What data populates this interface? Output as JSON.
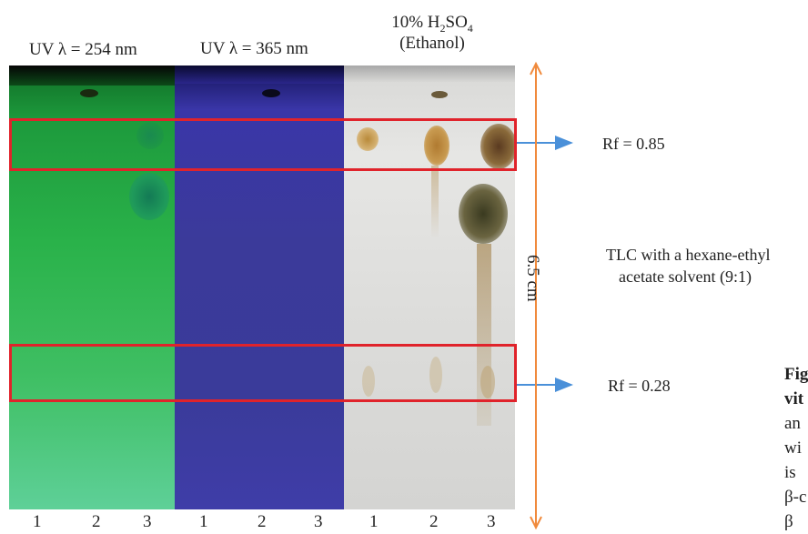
{
  "headers": {
    "uv254": "UV λ = 254 nm",
    "uv365": "UV λ = 365 nm",
    "h2so4_line1": "10% H",
    "h2so4_sub1": "2",
    "h2so4_mid": "SO",
    "h2so4_sub2": "4",
    "h2so4_line2": "(Ethanol)"
  },
  "lanes": [
    "1",
    "2",
    "3",
    "1",
    "2",
    "3",
    "1",
    "2",
    "3"
  ],
  "rf_labels": {
    "upper": "Rf = 0.85",
    "lower": "Rf = 0.28"
  },
  "scale_label": "6.5 cm",
  "note": {
    "line1": "TLC with a hexane-ethyl",
    "line2": "acetate solvent (9:1)"
  },
  "caption_fragments": [
    "Fig",
    "vit",
    "an",
    "wi",
    "is",
    "β-c",
    "β"
  ],
  "colors": {
    "box": "#e0232b",
    "arrow_blue": "#4a90d9",
    "scale_orange": "#f08a3c"
  }
}
